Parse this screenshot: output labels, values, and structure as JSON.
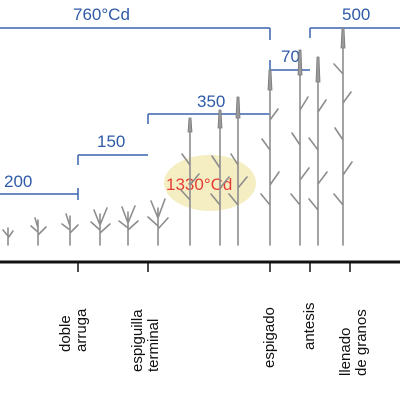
{
  "phase_labels": {
    "total_top": "760°Cd",
    "right_top": "500",
    "boot_to_anthesis": "70",
    "stem_elongation": "350",
    "spikelet": "150",
    "early": "200"
  },
  "highlight_label": "1330°Cd",
  "stage_labels": {
    "double_ridge_line1": "doble",
    "double_ridge_line2": "arruga",
    "terminal_spikelet_line1": "espiguilla",
    "terminal_spikelet_line2": "terminal",
    "heading": "espigado",
    "anthesis": "antesis",
    "grain_fill_line1": "llenado",
    "grain_fill_line2": "de granos"
  },
  "colors": {
    "phase_blue": "#2f5aa8",
    "highlight_red": "#e53d35",
    "highlight_fill": "#f3ebb8",
    "axis_black": "#111111",
    "plant_gray": "#8d8d8d"
  }
}
